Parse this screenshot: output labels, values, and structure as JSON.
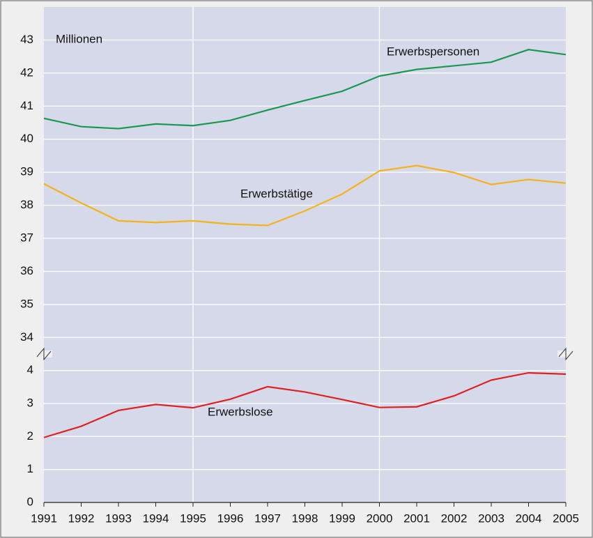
{
  "chart_data": {
    "type": "line",
    "ylabel": "Millionen",
    "x": [
      1991,
      1992,
      1993,
      1994,
      1995,
      1996,
      1997,
      1998,
      1999,
      2000,
      2001,
      2002,
      2003,
      2004,
      2005
    ],
    "xlim": [
      1991,
      2005
    ],
    "xticks": [
      1991,
      1992,
      1993,
      1994,
      1995,
      1996,
      1997,
      1998,
      1999,
      2000,
      2001,
      2002,
      2003,
      2004,
      2005
    ],
    "xgrid": [
      1995,
      2000
    ],
    "ylim": [
      0,
      44
    ],
    "y_break": [
      4.5,
      33.5
    ],
    "yticks": [
      0,
      1,
      2,
      3,
      4,
      34,
      35,
      36,
      37,
      38,
      39,
      40,
      41,
      42,
      43
    ],
    "grid": true,
    "series": [
      {
        "name": "Erwerbspersonen",
        "color": "#1a9850",
        "values": [
          40.63,
          40.38,
          40.32,
          40.46,
          40.41,
          40.57,
          40.88,
          41.17,
          41.45,
          41.91,
          42.11,
          42.22,
          42.33,
          42.71,
          42.56
        ]
      },
      {
        "name": "Erwerbstätige",
        "color": "#f5b21b",
        "values": [
          38.65,
          38.07,
          37.53,
          37.48,
          37.53,
          37.43,
          37.39,
          37.83,
          38.34,
          39.04,
          39.2,
          38.99,
          38.63,
          38.78,
          38.67
        ]
      },
      {
        "name": "Erwerbslose",
        "color": "#e02020",
        "values": [
          1.97,
          2.31,
          2.79,
          2.97,
          2.87,
          3.13,
          3.51,
          3.35,
          3.12,
          2.88,
          2.9,
          3.23,
          3.71,
          3.93,
          3.89
        ]
      }
    ]
  }
}
